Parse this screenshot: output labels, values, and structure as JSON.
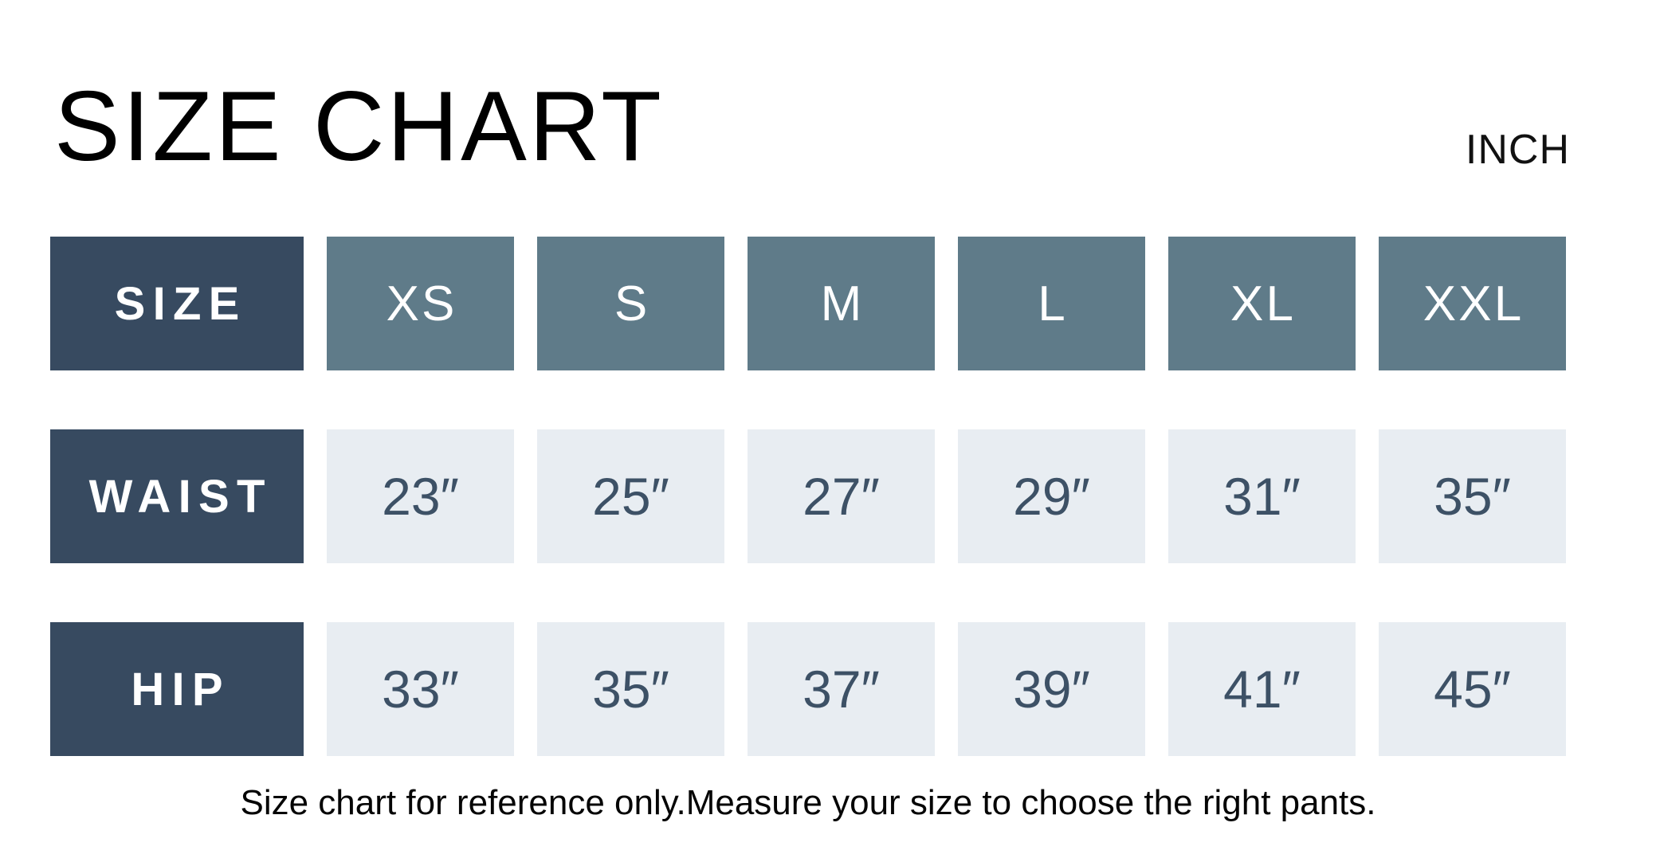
{
  "header": {
    "title": "SIZE CHART",
    "unit_label": "INCH"
  },
  "footer": {
    "note": "Size chart for reference only.Measure your size to choose the right pants."
  },
  "colors": {
    "navy": "#374a60",
    "slate": "#5f7b89",
    "light": "#e8edf2",
    "value-text": "#3d5166",
    "header-text": "#ffffff",
    "background": "#ffffff"
  },
  "chart_data": {
    "type": "table",
    "title": "SIZE CHART",
    "unit": "INCH",
    "columns": [
      "SIZE",
      "XS",
      "S",
      "M",
      "L",
      "XL",
      "XXL"
    ],
    "rows": [
      {
        "label": "WAIST",
        "values": [
          "23″",
          "25″",
          "27″",
          "29″",
          "31″",
          "35″"
        ]
      },
      {
        "label": "HIP",
        "values": [
          "33″",
          "35″",
          "37″",
          "39″",
          "41″",
          "45″"
        ]
      }
    ],
    "waist_inches": [
      23,
      25,
      27,
      29,
      31,
      35
    ],
    "hip_inches": [
      33,
      35,
      37,
      39,
      41,
      45
    ],
    "footnote": "Size chart for reference only.Measure your size to choose the right pants."
  }
}
